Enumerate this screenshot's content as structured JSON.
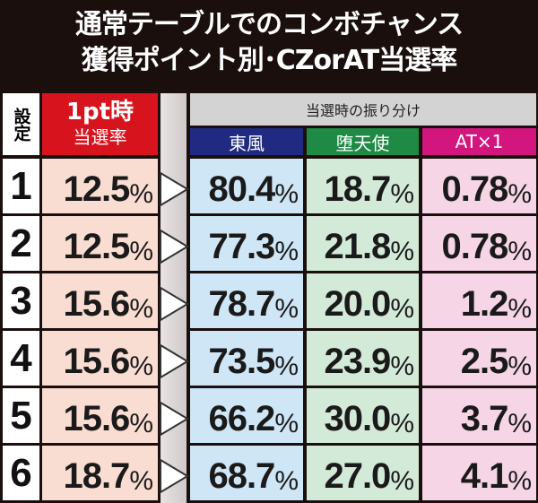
{
  "title": {
    "line1": "通常テーブルでのコンボチャンス",
    "line2": "獲得ポイント別･CZorAT当選率"
  },
  "header": {
    "setting": "設定",
    "rate_line1": "1pt時",
    "rate_line2": "当選率",
    "distribution": "当選時の振り分け",
    "col1": "東風",
    "col2": "堕天使",
    "col3": "AT×1"
  },
  "colors": {
    "rate_header": "#d7141e",
    "col1_header": "#202a80",
    "col2_header": "#1e8a45",
    "col3_header": "#d2167e",
    "rate_bg": "#f9ddd2",
    "col1_bg": "#cfe6f6",
    "col2_bg": "#d4ead8",
    "col3_bg": "#f6d6e6"
  },
  "rows": [
    {
      "setting": "1",
      "rate": "12.5",
      "col1": "80.4",
      "col2": "18.7",
      "col3": "0.78"
    },
    {
      "setting": "2",
      "rate": "12.5",
      "col1": "77.3",
      "col2": "21.8",
      "col3": "0.78"
    },
    {
      "setting": "3",
      "rate": "15.6",
      "col1": "78.7",
      "col2": "20.0",
      "col3": "1.2"
    },
    {
      "setting": "4",
      "rate": "15.6",
      "col1": "73.5",
      "col2": "23.9",
      "col3": "2.5"
    },
    {
      "setting": "5",
      "rate": "15.6",
      "col1": "66.2",
      "col2": "30.0",
      "col3": "3.7"
    },
    {
      "setting": "6",
      "rate": "18.7",
      "col1": "68.7",
      "col2": "27.0",
      "col3": "4.1"
    }
  ],
  "unit": "%"
}
